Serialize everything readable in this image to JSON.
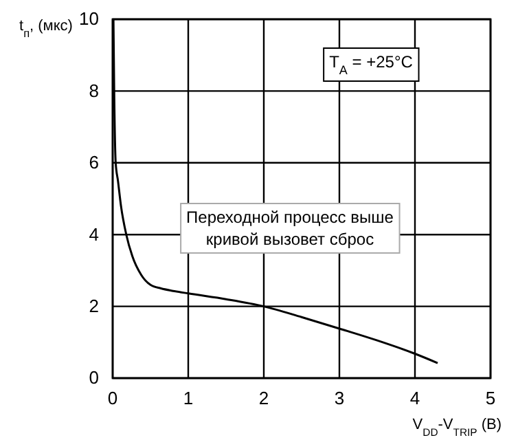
{
  "chart_data": {
    "type": "line",
    "xlabel": "V$_{DD}$-V$_{TRIP}$ (В)",
    "ylabel": "t$_{п}$, (мкс)",
    "x": [
      0.01,
      0.02,
      0.04,
      0.07,
      0.11,
      0.18,
      0.26,
      0.38,
      0.5,
      0.64,
      0.8,
      1,
      1.5,
      2,
      2.5,
      3,
      3.5,
      4,
      4.3
    ],
    "series": [
      {
        "color": "#000000",
        "values": [
          10,
          8,
          6,
          5.5,
          4.8,
          4,
          3.4,
          2.87,
          2.6,
          2.5,
          2.43,
          2.36,
          2.2,
          2,
          1.7,
          1.38,
          1.05,
          0.68,
          0.42
        ]
      }
    ],
    "xlim": [
      0,
      5
    ],
    "xticks": [
      0,
      1,
      2,
      3,
      4,
      5
    ],
    "ylim": [
      0,
      10
    ],
    "yticks": [
      0,
      2,
      4,
      6,
      8,
      10
    ],
    "grid": true,
    "marker": "none",
    "line_style": "solid",
    "annotations": [
      "T$_{A}$ = +25°C",
      "Переходной процесс выше\nкривой вызовет сброс"
    ]
  }
}
